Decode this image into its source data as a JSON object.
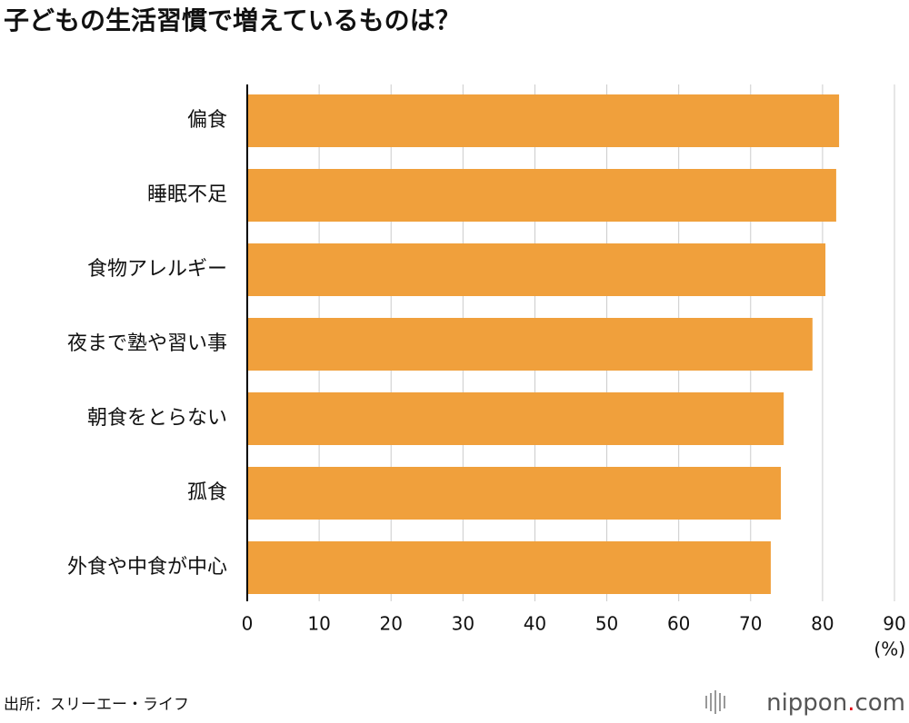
{
  "chart_data": {
    "type": "bar",
    "orientation": "horizontal",
    "title": "子どもの生活習慣で増えているものは？",
    "categories": [
      "偏食",
      "睡眠不足",
      "食物アレルギー",
      "夜まで塾や習い事",
      "朝食をとらない",
      "孤食",
      "外食や中食が中心"
    ],
    "values": [
      82.3,
      81.9,
      80.4,
      78.6,
      74.6,
      74.2,
      72.8
    ],
    "color": "#f0a03c",
    "xlim": [
      0,
      90
    ],
    "xticks": [
      0,
      10,
      20,
      30,
      40,
      50,
      60,
      70,
      80,
      90
    ],
    "x_unit": "(%)",
    "grid": true,
    "source": "出所：スリーエー・ライフ",
    "logo": {
      "name": "nippon",
      "dot": ".",
      "domain": "com"
    }
  }
}
